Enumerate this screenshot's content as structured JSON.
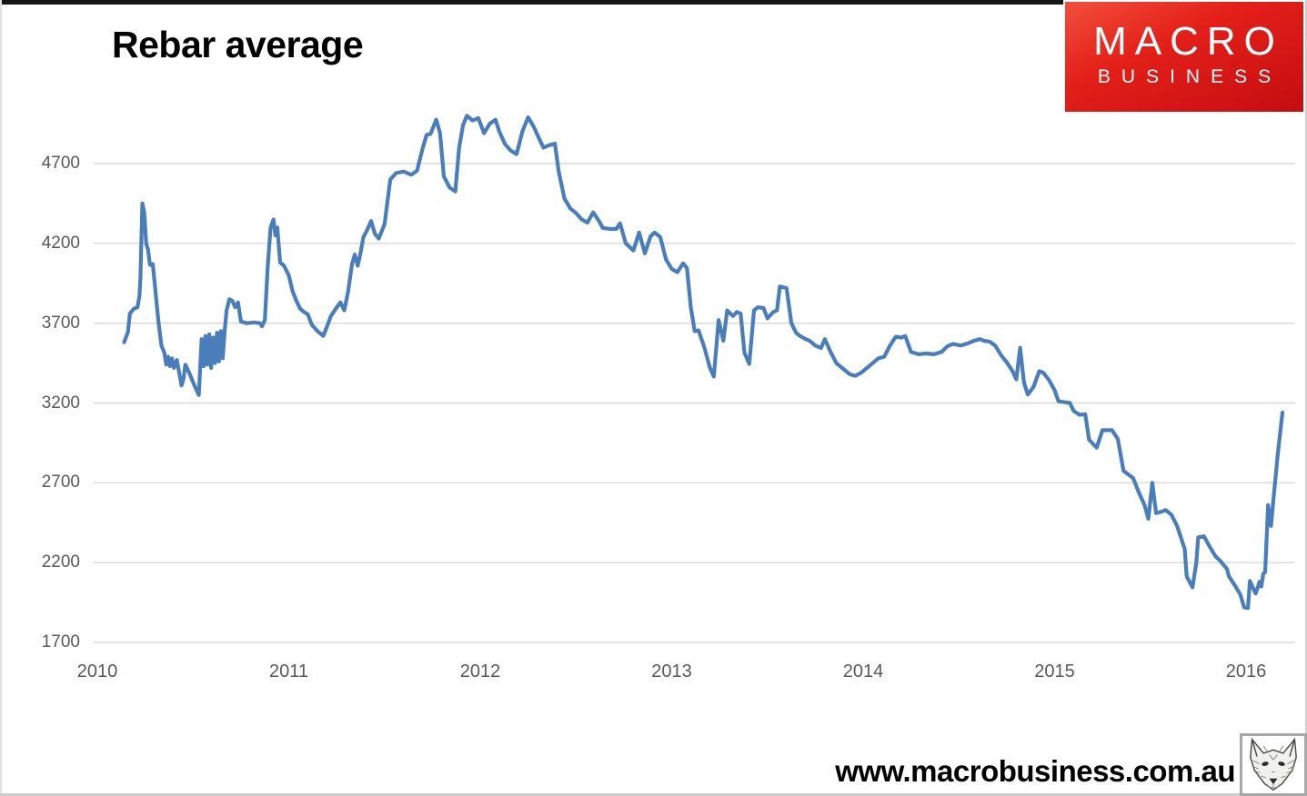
{
  "header": {
    "title": "Rebar average"
  },
  "logo": {
    "line1": "MACRO",
    "line2": "BUSINESS",
    "background_color": "#d8141a",
    "text_color": "#ffffff"
  },
  "footer": {
    "url": "www.macrobusiness.com.au"
  },
  "chart_data": {
    "type": "line",
    "title": "Rebar average",
    "xlabel": "",
    "ylabel": "",
    "grid": true,
    "legend": "none",
    "line_color": "#4a7ebb",
    "gridline_color": "#d9d9d9",
    "tick_label_color": "#595959",
    "xlim": [
      2010,
      2016.3
    ],
    "ylim": [
      1700,
      5050
    ],
    "x_ticks": [
      2010,
      2011,
      2012,
      2013,
      2014,
      2015,
      2016
    ],
    "y_ticks": [
      4700,
      4200,
      3700,
      3200,
      2700,
      2200,
      1700
    ],
    "series": [
      {
        "name": "Rebar average",
        "points": [
          [
            2010.14,
            3580
          ],
          [
            2010.16,
            3645
          ],
          [
            2010.17,
            3760
          ],
          [
            2010.19,
            3790
          ],
          [
            2010.21,
            3800
          ],
          [
            2010.22,
            3870
          ],
          [
            2010.225,
            3985
          ],
          [
            2010.235,
            4450
          ],
          [
            2010.245,
            4395
          ],
          [
            2010.255,
            4200
          ],
          [
            2010.265,
            4160
          ],
          [
            2010.275,
            4065
          ],
          [
            2010.29,
            4070
          ],
          [
            2010.3,
            3950
          ],
          [
            2010.31,
            3820
          ],
          [
            2010.32,
            3700
          ],
          [
            2010.335,
            3560
          ],
          [
            2010.35,
            3515
          ],
          [
            2010.36,
            3440
          ],
          [
            2010.37,
            3490
          ],
          [
            2010.38,
            3430
          ],
          [
            2010.39,
            3480
          ],
          [
            2010.4,
            3420
          ],
          [
            2010.415,
            3470
          ],
          [
            2010.43,
            3375
          ],
          [
            2010.44,
            3310
          ],
          [
            2010.45,
            3350
          ],
          [
            2010.46,
            3440
          ],
          [
            2010.48,
            3390
          ],
          [
            2010.5,
            3330
          ],
          [
            2010.515,
            3290
          ],
          [
            2010.53,
            3250
          ],
          [
            2010.545,
            3600
          ],
          [
            2010.555,
            3430
          ],
          [
            2010.565,
            3620
          ],
          [
            2010.575,
            3440
          ],
          [
            2010.585,
            3630
          ],
          [
            2010.595,
            3420
          ],
          [
            2010.605,
            3610
          ],
          [
            2010.615,
            3450
          ],
          [
            2010.625,
            3640
          ],
          [
            2010.635,
            3460
          ],
          [
            2010.645,
            3650
          ],
          [
            2010.655,
            3480
          ],
          [
            2010.665,
            3650
          ],
          [
            2010.675,
            3780
          ],
          [
            2010.69,
            3850
          ],
          [
            2010.705,
            3840
          ],
          [
            2010.72,
            3800
          ],
          [
            2010.735,
            3830
          ],
          [
            2010.75,
            3710
          ],
          [
            2010.78,
            3700
          ],
          [
            2010.82,
            3705
          ],
          [
            2010.85,
            3700
          ],
          [
            2010.86,
            3680
          ],
          [
            2010.875,
            3720
          ],
          [
            2010.89,
            4050
          ],
          [
            2010.905,
            4300
          ],
          [
            2010.92,
            4350
          ],
          [
            2010.93,
            4250
          ],
          [
            2010.94,
            4300
          ],
          [
            2010.955,
            4080
          ],
          [
            2010.975,
            4060
          ],
          [
            2011.0,
            4000
          ],
          [
            2011.02,
            3900
          ],
          [
            2011.04,
            3840
          ],
          [
            2011.06,
            3790
          ],
          [
            2011.08,
            3770
          ],
          [
            2011.1,
            3755
          ],
          [
            2011.12,
            3690
          ],
          [
            2011.15,
            3650
          ],
          [
            2011.18,
            3620
          ],
          [
            2011.2,
            3680
          ],
          [
            2011.22,
            3745
          ],
          [
            2011.245,
            3790
          ],
          [
            2011.27,
            3830
          ],
          [
            2011.29,
            3780
          ],
          [
            2011.31,
            3900
          ],
          [
            2011.33,
            4070
          ],
          [
            2011.345,
            4130
          ],
          [
            2011.36,
            4060
          ],
          [
            2011.375,
            4140
          ],
          [
            2011.39,
            4240
          ],
          [
            2011.41,
            4285
          ],
          [
            2011.43,
            4340
          ],
          [
            2011.45,
            4260
          ],
          [
            2011.47,
            4230
          ],
          [
            2011.5,
            4320
          ],
          [
            2011.53,
            4600
          ],
          [
            2011.56,
            4640
          ],
          [
            2011.6,
            4650
          ],
          [
            2011.64,
            4630
          ],
          [
            2011.67,
            4655
          ],
          [
            2011.7,
            4800
          ],
          [
            2011.72,
            4880
          ],
          [
            2011.74,
            4885
          ],
          [
            2011.77,
            4975
          ],
          [
            2011.79,
            4890
          ],
          [
            2011.81,
            4620
          ],
          [
            2011.84,
            4550
          ],
          [
            2011.87,
            4525
          ],
          [
            2011.89,
            4800
          ],
          [
            2011.91,
            4940
          ],
          [
            2011.93,
            5000
          ],
          [
            2011.96,
            4970
          ],
          [
            2011.99,
            4985
          ],
          [
            2012.02,
            4890
          ],
          [
            2012.05,
            4950
          ],
          [
            2012.08,
            4975
          ],
          [
            2012.1,
            4900
          ],
          [
            2012.13,
            4820
          ],
          [
            2012.16,
            4780
          ],
          [
            2012.19,
            4760
          ],
          [
            2012.22,
            4900
          ],
          [
            2012.25,
            4990
          ],
          [
            2012.28,
            4930
          ],
          [
            2012.31,
            4850
          ],
          [
            2012.33,
            4800
          ],
          [
            2012.36,
            4815
          ],
          [
            2012.39,
            4825
          ],
          [
            2012.41,
            4650
          ],
          [
            2012.44,
            4480
          ],
          [
            2012.47,
            4420
          ],
          [
            2012.5,
            4390
          ],
          [
            2012.53,
            4350
          ],
          [
            2012.56,
            4330
          ],
          [
            2012.59,
            4395
          ],
          [
            2012.62,
            4340
          ],
          [
            2012.64,
            4297
          ],
          [
            2012.68,
            4290
          ],
          [
            2012.71,
            4290
          ],
          [
            2012.73,
            4325
          ],
          [
            2012.76,
            4200
          ],
          [
            2012.8,
            4155
          ],
          [
            2012.83,
            4268
          ],
          [
            2012.86,
            4137
          ],
          [
            2012.89,
            4245
          ],
          [
            2012.91,
            4268
          ],
          [
            2012.94,
            4240
          ],
          [
            2012.97,
            4100
          ],
          [
            2013.0,
            4040
          ],
          [
            2013.03,
            4020
          ],
          [
            2013.06,
            4075
          ],
          [
            2013.08,
            4045
          ],
          [
            2013.1,
            3800
          ],
          [
            2013.12,
            3650
          ],
          [
            2013.14,
            3655
          ],
          [
            2013.17,
            3550
          ],
          [
            2013.2,
            3420
          ],
          [
            2013.22,
            3365
          ],
          [
            2013.245,
            3720
          ],
          [
            2013.27,
            3590
          ],
          [
            2013.29,
            3780
          ],
          [
            2013.32,
            3745
          ],
          [
            2013.34,
            3770
          ],
          [
            2013.36,
            3760
          ],
          [
            2013.38,
            3515
          ],
          [
            2013.405,
            3445
          ],
          [
            2013.43,
            3780
          ],
          [
            2013.45,
            3800
          ],
          [
            2013.48,
            3795
          ],
          [
            2013.5,
            3730
          ],
          [
            2013.53,
            3770
          ],
          [
            2013.55,
            3780
          ],
          [
            2013.565,
            3930
          ],
          [
            2013.6,
            3920
          ],
          [
            2013.625,
            3700
          ],
          [
            2013.65,
            3640
          ],
          [
            2013.67,
            3620
          ],
          [
            2013.7,
            3600
          ],
          [
            2013.72,
            3590
          ],
          [
            2013.75,
            3560
          ],
          [
            2013.78,
            3545
          ],
          [
            2013.8,
            3600
          ],
          [
            2013.83,
            3520
          ],
          [
            2013.86,
            3450
          ],
          [
            2013.9,
            3410
          ],
          [
            2013.93,
            3380
          ],
          [
            2013.96,
            3370
          ],
          [
            2013.99,
            3390
          ],
          [
            2014.02,
            3420
          ],
          [
            2014.05,
            3450
          ],
          [
            2014.08,
            3480
          ],
          [
            2014.11,
            3490
          ],
          [
            2014.14,
            3560
          ],
          [
            2014.17,
            3615
          ],
          [
            2014.2,
            3610
          ],
          [
            2014.22,
            3620
          ],
          [
            2014.25,
            3520
          ],
          [
            2014.29,
            3505
          ],
          [
            2014.33,
            3510
          ],
          [
            2014.37,
            3505
          ],
          [
            2014.41,
            3520
          ],
          [
            2014.44,
            3555
          ],
          [
            2014.47,
            3570
          ],
          [
            2014.51,
            3560
          ],
          [
            2014.55,
            3575
          ],
          [
            2014.58,
            3590
          ],
          [
            2014.61,
            3600
          ],
          [
            2014.63,
            3590
          ],
          [
            2014.66,
            3585
          ],
          [
            2014.69,
            3560
          ],
          [
            2014.72,
            3500
          ],
          [
            2014.75,
            3455
          ],
          [
            2014.78,
            3400
          ],
          [
            2014.8,
            3348
          ],
          [
            2014.82,
            3546
          ],
          [
            2014.84,
            3330
          ],
          [
            2014.86,
            3253
          ],
          [
            2014.89,
            3300
          ],
          [
            2014.92,
            3400
          ],
          [
            2014.94,
            3390
          ],
          [
            2014.97,
            3345
          ],
          [
            2015.0,
            3280
          ],
          [
            2015.02,
            3211
          ],
          [
            2015.05,
            3205
          ],
          [
            2015.08,
            3200
          ],
          [
            2015.1,
            3150
          ],
          [
            2015.13,
            3126
          ],
          [
            2015.16,
            3130
          ],
          [
            2015.18,
            2970
          ],
          [
            2015.22,
            2920
          ],
          [
            2015.25,
            3030
          ],
          [
            2015.3,
            3030
          ],
          [
            2015.33,
            2975
          ],
          [
            2015.36,
            2775
          ],
          [
            2015.41,
            2730
          ],
          [
            2015.44,
            2640
          ],
          [
            2015.47,
            2560
          ],
          [
            2015.49,
            2475
          ],
          [
            2015.51,
            2700
          ],
          [
            2015.53,
            2510
          ],
          [
            2015.56,
            2520
          ],
          [
            2015.58,
            2530
          ],
          [
            2015.61,
            2500
          ],
          [
            2015.64,
            2430
          ],
          [
            2015.68,
            2284
          ],
          [
            2015.69,
            2113
          ],
          [
            2015.72,
            2045
          ],
          [
            2015.74,
            2200
          ],
          [
            2015.75,
            2358
          ],
          [
            2015.78,
            2365
          ],
          [
            2015.81,
            2300
          ],
          [
            2015.84,
            2240
          ],
          [
            2015.87,
            2205
          ],
          [
            2015.9,
            2160
          ],
          [
            2015.91,
            2115
          ],
          [
            2015.94,
            2060
          ],
          [
            2015.97,
            2000
          ],
          [
            2015.99,
            1920
          ],
          [
            2016.01,
            1915
          ],
          [
            2016.02,
            2085
          ],
          [
            2016.05,
            2007
          ],
          [
            2016.06,
            2040
          ],
          [
            2016.07,
            2080
          ],
          [
            2016.08,
            2050
          ],
          [
            2016.09,
            2130
          ],
          [
            2016.1,
            2140
          ],
          [
            2016.115,
            2560
          ],
          [
            2016.13,
            2430
          ],
          [
            2016.145,
            2620
          ],
          [
            2016.165,
            2870
          ],
          [
            2016.19,
            3140
          ]
        ]
      }
    ]
  }
}
